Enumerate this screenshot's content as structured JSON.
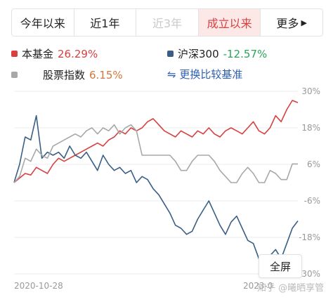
{
  "tabs": [
    {
      "label": "今年以来"
    },
    {
      "label": "近1年"
    },
    {
      "label": "近3年"
    },
    {
      "label": "成立以来"
    },
    {
      "label": "更多"
    }
  ],
  "legend": {
    "fund": {
      "label": "本基金",
      "value": "26.29%",
      "color": "#d84040"
    },
    "hs300": {
      "label": "沪深300",
      "value": "-12.57%",
      "color": "#3a5f86"
    },
    "stock_index": {
      "label": "股票指数",
      "value": "6.15%",
      "color": "#a8a8a8"
    },
    "switch_label": "⇋ 更换比较基准"
  },
  "fullscreen_label": "全屏",
  "watermark": "知乎 @曦晒享管",
  "chart_data": {
    "type": "line",
    "x_start_label": "2020-10-28",
    "x_end_label": "2023-0",
    "y_ticks": [
      "30%",
      "18%",
      "6%",
      "-6%",
      "-18%",
      "-30%"
    ],
    "ylim": [
      -30,
      30
    ],
    "series": [
      {
        "name": "本基金",
        "color": "#d84040",
        "values": [
          0,
          1.5,
          3,
          2.5,
          5,
          4,
          3,
          6,
          8,
          7,
          8,
          9,
          10,
          11,
          12,
          13,
          12,
          14,
          15,
          17,
          16,
          18,
          17,
          18,
          20,
          21,
          19,
          17,
          16,
          15,
          17,
          16,
          15,
          17,
          16,
          18,
          16,
          15,
          17,
          18,
          17,
          16,
          18,
          20,
          17,
          16,
          18,
          22,
          20,
          24,
          27,
          26.29
        ]
      },
      {
        "name": "沪深300",
        "color": "#3a5f86",
        "values": [
          0,
          6,
          15,
          14,
          22,
          8,
          10,
          9,
          10,
          8,
          12,
          9,
          8,
          10,
          7,
          4,
          9,
          6,
          4,
          5,
          3,
          4,
          0,
          2,
          1,
          -2,
          -4,
          -7,
          -10,
          -14,
          -15,
          -17,
          -16,
          -12,
          -9,
          -6,
          -10,
          -14,
          -17,
          -13,
          -11,
          -15,
          -19,
          -20,
          -25,
          -28,
          -24,
          -22,
          -25,
          -20,
          -15,
          -12.57
        ]
      },
      {
        "name": "股票指数",
        "color": "#a8a8a8",
        "values": [
          0,
          2,
          8,
          7,
          11,
          9,
          8,
          12,
          13,
          14,
          15,
          16,
          15,
          17,
          18,
          16,
          18,
          17,
          19,
          16,
          18,
          19,
          17,
          9,
          9,
          9,
          9,
          9,
          9,
          7,
          4,
          4,
          7,
          9,
          9,
          9,
          7,
          4,
          2,
          0,
          0,
          3,
          5,
          3,
          0,
          0,
          4,
          3,
          1,
          1,
          6.15,
          6.15
        ]
      }
    ]
  }
}
